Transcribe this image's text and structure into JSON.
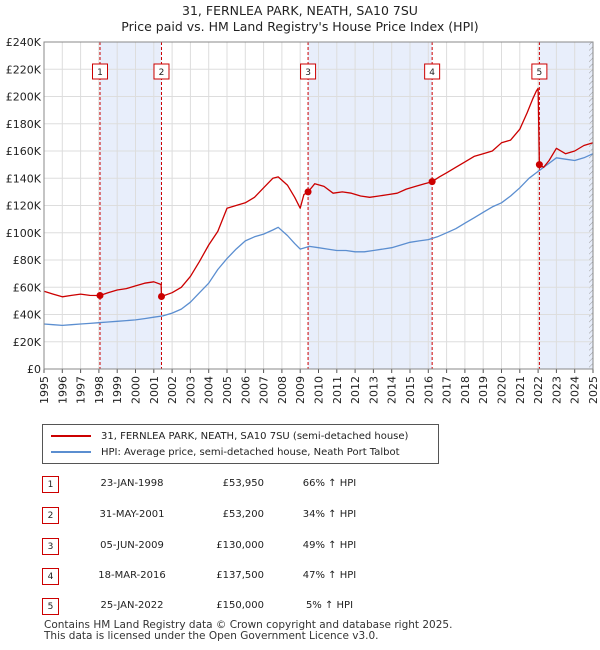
{
  "chart_data": {
    "type": "line",
    "title": "31, FERNLEA PARK, NEATH, SA10 7SU",
    "subtitle": "Price paid vs. HM Land Registry's House Price Index (HPI)",
    "x_range": [
      1995,
      2025
    ],
    "ylim": [
      0,
      240000
    ],
    "y_ticks": [
      {
        "value": 0,
        "label": "£0"
      },
      {
        "value": 20000,
        "label": "£20K"
      },
      {
        "value": 40000,
        "label": "£40K"
      },
      {
        "value": 60000,
        "label": "£60K"
      },
      {
        "value": 80000,
        "label": "£80K"
      },
      {
        "value": 100000,
        "label": "£100K"
      },
      {
        "value": 120000,
        "label": "£120K"
      },
      {
        "value": 140000,
        "label": "£140K"
      },
      {
        "value": 160000,
        "label": "£160K"
      },
      {
        "value": 180000,
        "label": "£180K"
      },
      {
        "value": 200000,
        "label": "£200K"
      },
      {
        "value": 220000,
        "label": "£220K"
      },
      {
        "value": 240000,
        "label": "£240K"
      }
    ],
    "x_ticks": [
      "1995",
      "1996",
      "1997",
      "1998",
      "1999",
      "2000",
      "2001",
      "2002",
      "2003",
      "2004",
      "2005",
      "2006",
      "2007",
      "2008",
      "2009",
      "2010",
      "2011",
      "2012",
      "2013",
      "2014",
      "2015",
      "2016",
      "2017",
      "2018",
      "2019",
      "2020",
      "2021",
      "2022",
      "2023",
      "2024",
      "2025"
    ],
    "grid": true,
    "series": [
      {
        "name": "31, FERNLEA PARK, NEATH, SA10 7SU (semi-detached house)",
        "color": "#cc0000",
        "x": [
          1995.0,
          1995.5,
          1996.0,
          1996.5,
          1997.0,
          1997.5,
          1998.06,
          1998.5,
          1999.0,
          1999.5,
          2000.0,
          2000.5,
          2001.0,
          2001.4,
          2001.42,
          2002.0,
          2002.5,
          2003.0,
          2003.5,
          2004.0,
          2004.5,
          2005.0,
          2005.5,
          2006.0,
          2006.5,
          2007.0,
          2007.5,
          2007.8,
          2008.3,
          2008.7,
          2009.0,
          2009.2,
          2009.43,
          2009.8,
          2010.3,
          2010.8,
          2011.3,
          2011.8,
          2012.3,
          2012.8,
          2013.3,
          2013.8,
          2014.3,
          2014.8,
          2015.3,
          2015.8,
          2016.21,
          2016.6,
          2017.0,
          2017.5,
          2018.0,
          2018.5,
          2019.0,
          2019.5,
          2020.0,
          2020.5,
          2021.0,
          2021.4,
          2021.7,
          2021.9,
          2022.0,
          2022.07,
          2022.3,
          2022.6,
          2023.0,
          2023.5,
          2024.0,
          2024.5,
          2025.0
        ],
        "y": [
          57000,
          55000,
          53000,
          54000,
          55000,
          54000,
          53950,
          56000,
          58000,
          59000,
          61000,
          63000,
          64000,
          62000,
          53200,
          56000,
          60000,
          68000,
          79000,
          91000,
          101000,
          118000,
          120000,
          122000,
          126000,
          133000,
          140000,
          141000,
          135000,
          126000,
          118000,
          128000,
          130000,
          136000,
          134000,
          129000,
          130000,
          129000,
          127000,
          126000,
          127000,
          128000,
          129000,
          132000,
          134000,
          136000,
          137500,
          141000,
          144000,
          148000,
          152000,
          156000,
          158000,
          160000,
          166000,
          168000,
          176000,
          188000,
          198000,
          204000,
          206000,
          150000,
          148000,
          153000,
          162000,
          158000,
          160000,
          164000,
          166000
        ]
      },
      {
        "name": "HPI: Average price, semi-detached house, Neath Port Talbot",
        "color": "#5b8ed0",
        "x": [
          1995.0,
          1995.5,
          1996.0,
          1996.5,
          1997.0,
          1997.5,
          1998.0,
          1998.5,
          1999.0,
          1999.5,
          2000.0,
          2000.5,
          2001.0,
          2001.5,
          2002.0,
          2002.5,
          2003.0,
          2003.5,
          2004.0,
          2004.5,
          2005.0,
          2005.5,
          2006.0,
          2006.5,
          2007.0,
          2007.5,
          2007.8,
          2008.3,
          2008.7,
          2009.0,
          2009.5,
          2010.0,
          2010.5,
          2011.0,
          2011.5,
          2012.0,
          2012.5,
          2013.0,
          2013.5,
          2014.0,
          2014.5,
          2015.0,
          2015.5,
          2016.0,
          2016.5,
          2017.0,
          2017.5,
          2018.0,
          2018.5,
          2019.0,
          2019.5,
          2020.0,
          2020.5,
          2021.0,
          2021.5,
          2022.0,
          2022.5,
          2023.0,
          2023.5,
          2024.0,
          2024.5,
          2025.0
        ],
        "y": [
          33000,
          32500,
          32000,
          32500,
          33000,
          33500,
          34000,
          34500,
          35000,
          35500,
          36000,
          37000,
          38000,
          39000,
          41000,
          44000,
          49000,
          56000,
          63000,
          73000,
          81000,
          88000,
          94000,
          97000,
          99000,
          102000,
          104000,
          98000,
          92000,
          88000,
          90000,
          89000,
          88000,
          87000,
          87000,
          86000,
          86000,
          87000,
          88000,
          89000,
          91000,
          93000,
          94000,
          95000,
          97000,
          100000,
          103000,
          107000,
          111000,
          115000,
          119000,
          122000,
          127000,
          133000,
          140000,
          145000,
          150000,
          155000,
          154000,
          153000,
          155000,
          158000
        ]
      }
    ],
    "sale_markers": [
      {
        "label": "1",
        "x": 1998.06,
        "y": 53950
      },
      {
        "label": "2",
        "x": 2001.42,
        "y": 53200
      },
      {
        "label": "3",
        "x": 2009.43,
        "y": 130000
      },
      {
        "label": "4",
        "x": 2016.21,
        "y": 137500
      },
      {
        "label": "5",
        "x": 2022.07,
        "y": 150000
      }
    ],
    "shaded_periods": [
      [
        1998.06,
        2001.42
      ],
      [
        2009.43,
        2016.21
      ],
      [
        2022.07,
        2025.0
      ]
    ],
    "hatched_period": [
      2024.95,
      2025.0
    ]
  },
  "legend": {
    "items": [
      {
        "label": "31, FERNLEA PARK, NEATH, SA10 7SU (semi-detached house)",
        "color": "#cc0000"
      },
      {
        "label": "HPI: Average price, semi-detached house, Neath Port Talbot",
        "color": "#5b8ed0"
      }
    ]
  },
  "sales": [
    {
      "num": "1",
      "date": "23-JAN-1998",
      "price": "£53,950",
      "hpi": "66% ↑ HPI"
    },
    {
      "num": "2",
      "date": "31-MAY-2001",
      "price": "£53,200",
      "hpi": "34% ↑ HPI"
    },
    {
      "num": "3",
      "date": "05-JUN-2009",
      "price": "£130,000",
      "hpi": "49% ↑ HPI"
    },
    {
      "num": "4",
      "date": "18-MAR-2016",
      "price": "£137,500",
      "hpi": "47% ↑ HPI"
    },
    {
      "num": "5",
      "date": "25-JAN-2022",
      "price": "£150,000",
      "hpi": "5% ↑ HPI"
    }
  ],
  "footer": {
    "line1": "Contains HM Land Registry data © Crown copyright and database right 2025.",
    "line2": "This data is licensed under the Open Government Licence v3.0."
  }
}
